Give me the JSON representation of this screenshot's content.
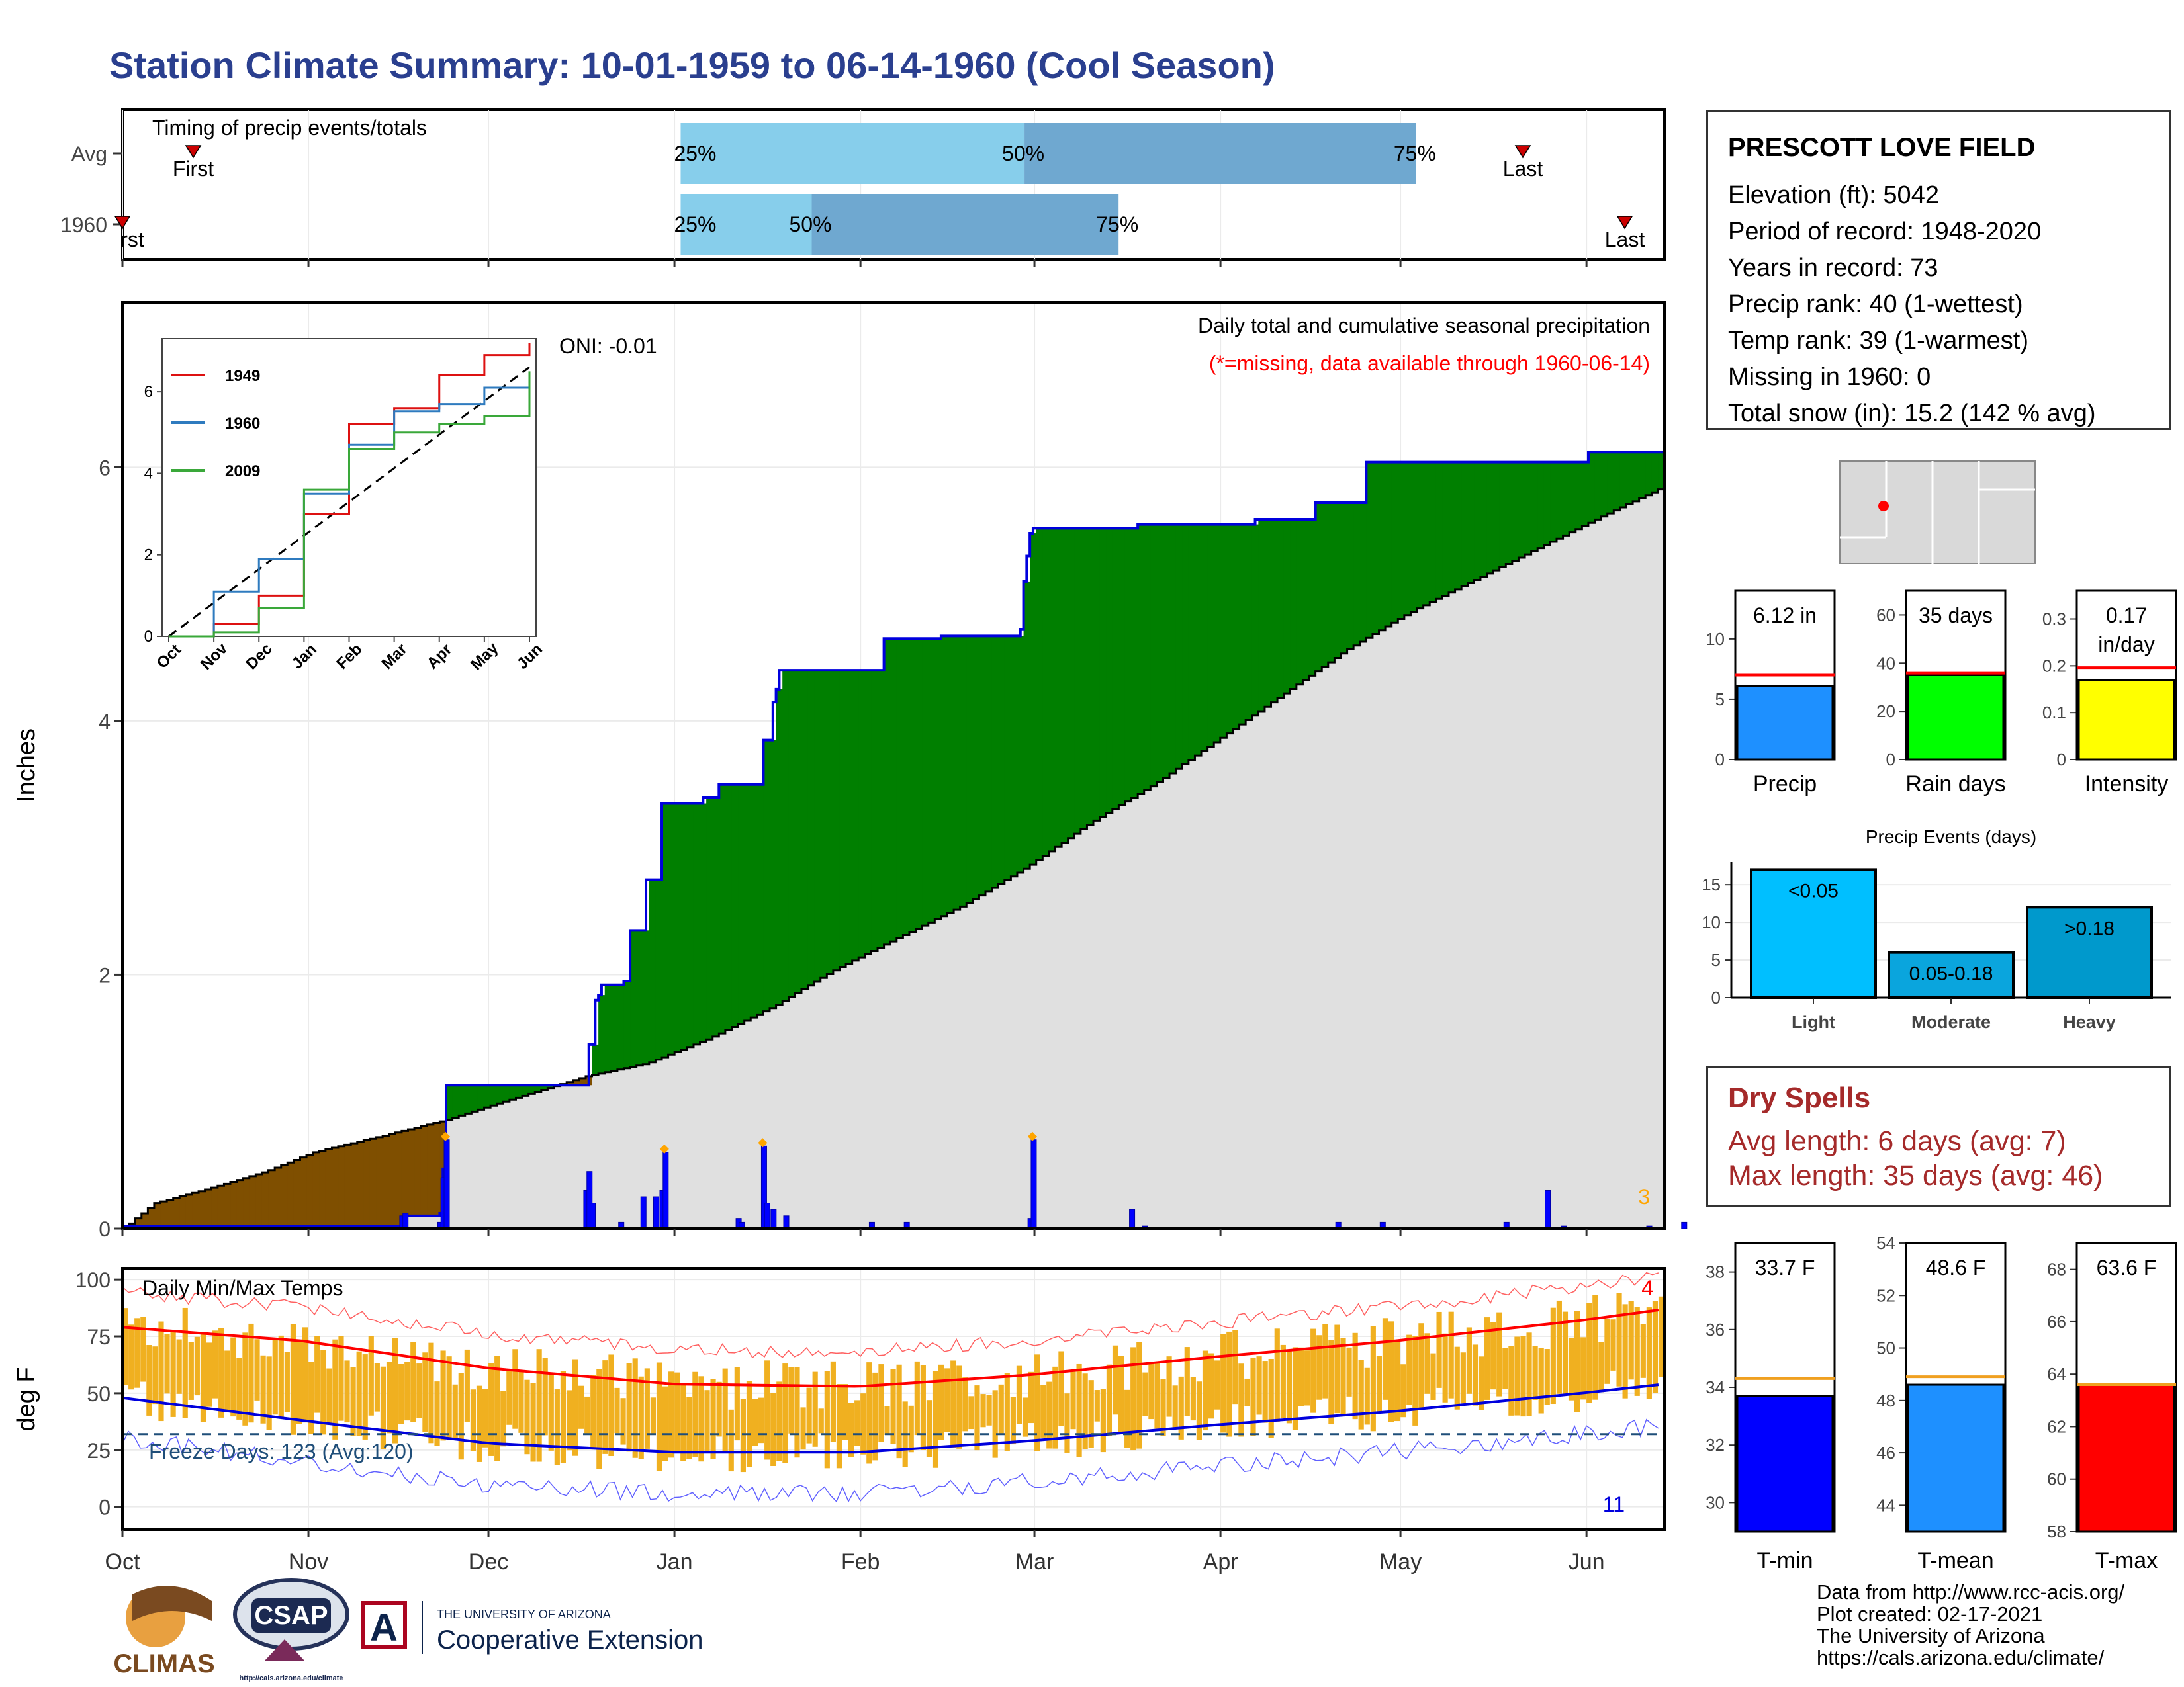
{
  "title": "Station Climate Summary: 10-01-1959 to 06-14-1960 (Cool Season)",
  "timing": {
    "label": "Timing of precip events/totals",
    "rows": [
      {
        "name": "Avg",
        "first_label": "First",
        "last_label": "Last",
        "first": 0.14,
        "p25": 0.362,
        "p50": 0.585,
        "p75": 0.839,
        "last": 1.9
      },
      {
        "name": "1960",
        "first_label": "First",
        "last_label": "Last",
        "first": 0.0,
        "p25": 0.362,
        "p50": 0.447,
        "p75": 0.646,
        "last": 2.082
      }
    ],
    "pct_labels": [
      "25%",
      "50%",
      "75%"
    ],
    "colors": {
      "light": "#87ceeb",
      "dark": "#6fa8d0",
      "marker": "#cc0000"
    }
  },
  "main_chart": {
    "ylabel": "Inches",
    "header": "Daily total and cumulative seasonal precipitation",
    "missing_note": "(*=missing, data available through 1960-06-14)",
    "oni": "ONI: -0.01",
    "count_label": "3",
    "ylim": [
      0,
      7.3
    ],
    "yticks": [
      0,
      2,
      4,
      6
    ],
    "months": [
      "Oct",
      "Nov",
      "Dec",
      "Jan",
      "Feb",
      "Mar",
      "Apr",
      "May",
      "Jun"
    ],
    "colors": {
      "above": "#007f00",
      "below": "#7f4f00",
      "observed": "#0000dd",
      "fill": "#e0e0e0",
      "avg_line": "#000000"
    }
  },
  "chart_data": [
    {
      "type": "area",
      "title": "Daily total and cumulative seasonal precipitation",
      "ylabel": "Inches",
      "x_unit": "day of season (0 = Oct 1)",
      "ylim": [
        0,
        7.3
      ],
      "series": [
        {
          "name": "1960",
          "points": [
            [
              0,
              0.02
            ],
            [
              88,
              0.02
            ],
            [
              89,
              0.1
            ],
            [
              100,
              0.12
            ],
            [
              101,
              0.47
            ],
            [
              102,
              1.13
            ],
            [
              146,
              1.13
            ],
            [
              147,
              1.45
            ],
            [
              149,
              1.8
            ],
            [
              150,
              1.84
            ],
            [
              151,
              1.92
            ],
            [
              158,
              1.95
            ],
            [
              160,
              2.35
            ],
            [
              165,
              2.75
            ],
            [
              170,
              3.35
            ],
            [
              183,
              3.4
            ],
            [
              188,
              3.5
            ],
            [
              201,
              3.5
            ],
            [
              202,
              3.85
            ],
            [
              205,
              4.15
            ],
            [
              206,
              4.25
            ],
            [
              207,
              4.4
            ],
            [
              239,
              4.4
            ],
            [
              240,
              4.65
            ],
            [
              257,
              4.65
            ],
            [
              258,
              4.67
            ],
            [
              283,
              4.72
            ],
            [
              284,
              5.1
            ],
            [
              285,
              5.3
            ],
            [
              286,
              5.48
            ],
            [
              287,
              5.52
            ],
            [
              311,
              5.52
            ],
            [
              320,
              5.55
            ],
            [
              356,
              5.55
            ],
            [
              357,
              5.59
            ],
            [
              375,
              5.59
            ],
            [
              376,
              5.72
            ],
            [
              391,
              5.72
            ],
            [
              392,
              6.04
            ],
            [
              462,
              6.12
            ],
            [
              486,
              6.12
            ]
          ]
        },
        {
          "name": "Avg",
          "points": [
            [
              0,
              0.0
            ],
            [
              10,
              0.2
            ],
            [
              25,
              0.3
            ],
            [
              45,
              0.45
            ],
            [
              60,
              0.6
            ],
            [
              80,
              0.72
            ],
            [
              101,
              0.85
            ],
            [
              120,
              1.0
            ],
            [
              146,
              1.2
            ],
            [
              165,
              1.3
            ],
            [
              185,
              1.5
            ],
            [
              205,
              1.75
            ],
            [
              225,
              2.05
            ],
            [
              245,
              2.3
            ],
            [
              265,
              2.55
            ],
            [
              285,
              2.85
            ],
            [
              305,
              3.2
            ],
            [
              325,
              3.5
            ],
            [
              345,
              3.85
            ],
            [
              365,
              4.2
            ],
            [
              385,
              4.55
            ],
            [
              405,
              4.85
            ],
            [
              425,
              5.1
            ],
            [
              445,
              5.35
            ],
            [
              465,
              5.6
            ],
            [
              486,
              5.85
            ]
          ]
        }
      ],
      "daily_bars": [
        [
          88,
          0.1
        ],
        [
          89,
          0.12
        ],
        [
          100,
          0.05
        ],
        [
          101,
          0.4
        ],
        [
          102,
          0.7
        ],
        [
          146,
          0.3
        ],
        [
          147,
          0.45
        ],
        [
          148,
          0.2
        ],
        [
          157,
          0.05
        ],
        [
          164,
          0.25
        ],
        [
          168,
          0.25
        ],
        [
          170,
          0.3
        ],
        [
          171,
          0.6
        ],
        [
          194,
          0.08
        ],
        [
          195,
          0.05
        ],
        [
          202,
          0.65
        ],
        [
          203,
          0.2
        ],
        [
          205,
          0.15
        ],
        [
          209,
          0.1
        ],
        [
          236,
          0.05
        ],
        [
          247,
          0.05
        ],
        [
          286,
          0.08
        ],
        [
          287,
          0.7
        ],
        [
          318,
          0.15
        ],
        [
          322,
          0.02
        ],
        [
          383,
          0.05
        ],
        [
          397,
          0.05
        ],
        [
          436,
          0.05
        ],
        [
          449,
          0.3
        ],
        [
          454,
          0.02
        ],
        [
          481,
          0.02
        ],
        [
          492,
          0.05
        ]
      ]
    },
    {
      "type": "line",
      "title": "",
      "x": [
        "Oct",
        "Nov",
        "Dec",
        "Jan",
        "Feb",
        "Mar",
        "Apr",
        "May",
        "Jun"
      ],
      "series": [
        {
          "name": "1949",
          "values": [
            0,
            0.3,
            1.0,
            3.0,
            5.2,
            5.6,
            6.4,
            6.9,
            7.2
          ]
        },
        {
          "name": "1960",
          "values": [
            0,
            1.1,
            1.9,
            3.5,
            4.7,
            5.52,
            5.7,
            6.1,
            6.12
          ]
        },
        {
          "name": "2009",
          "values": [
            0,
            0.1,
            0.7,
            3.6,
            4.6,
            5.0,
            5.2,
            5.4,
            6.5
          ]
        }
      ],
      "avg_label": "",
      "yticks": [
        0,
        2,
        4,
        6
      ]
    },
    {
      "type": "bar",
      "title": "",
      "categories": [
        "Precip",
        "Rain days",
        "Intensity"
      ],
      "values": [
        6.12,
        35,
        0.17
      ],
      "avg": [
        7.0,
        35.8,
        0.196
      ],
      "value_labels": [
        "6.12 in",
        "35 days",
        "0.17 in/day"
      ],
      "ylims": [
        [
          0,
          14
        ],
        [
          0,
          70
        ],
        [
          0,
          0.36
        ]
      ],
      "ytick_sets": [
        [
          0,
          5,
          10
        ],
        [
          0,
          20,
          40,
          60
        ],
        [
          0.0,
          0.1,
          0.2,
          0.3
        ]
      ],
      "colors": [
        "#1e90ff",
        "#00ff00",
        "#ffff00"
      ]
    },
    {
      "type": "bar",
      "title": "Precip Events (days)",
      "categories": [
        "Light",
        "Moderate",
        "Heavy"
      ],
      "values": [
        17,
        6,
        12
      ],
      "value_labels": [
        "<0.05",
        "0.05-0.18",
        ">0.18"
      ],
      "yticks": [
        0,
        5,
        10,
        15
      ],
      "ylim": [
        0,
        18
      ],
      "colors": [
        "#00bfff",
        "#0aa5dd",
        "#0099cc"
      ]
    },
    {
      "type": "bar",
      "title": "Daily Min/Max Temps",
      "ylabel": "deg F",
      "ylim": [
        -10,
        105
      ],
      "yticks": [
        0,
        25,
        50,
        75,
        100
      ],
      "freeze_label": "Freeze Days: 123 (Avg:120)",
      "freeze_line": 32,
      "record_high_count": "4",
      "record_low_count": "11",
      "avg_max": [
        [
          0,
          79
        ],
        [
          30,
          73
        ],
        [
          61,
          61
        ],
        [
          92,
          54
        ],
        [
          123,
          53
        ],
        [
          151,
          58
        ],
        [
          182,
          66
        ],
        [
          212,
          73
        ],
        [
          243,
          82
        ],
        [
          257,
          87
        ]
      ],
      "avg_min": [
        [
          0,
          48
        ],
        [
          30,
          38
        ],
        [
          61,
          28
        ],
        [
          92,
          24
        ],
        [
          123,
          24
        ],
        [
          151,
          29
        ],
        [
          182,
          36
        ],
        [
          212,
          42
        ],
        [
          243,
          50
        ],
        [
          257,
          54
        ]
      ]
    },
    {
      "type": "bar",
      "title": "",
      "categories": [
        "T-min",
        "T-mean",
        "T-max"
      ],
      "values": [
        33.7,
        48.6,
        63.6
      ],
      "avg": [
        34.3,
        48.9,
        63.6
      ],
      "value_labels": [
        "33.7 F",
        "48.6 F",
        "63.6 F"
      ],
      "ylims": [
        [
          29,
          39
        ],
        [
          43,
          54
        ],
        [
          58,
          69
        ]
      ],
      "ytick_sets": [
        [
          30,
          32,
          34,
          36,
          38
        ],
        [
          44,
          46,
          48,
          50,
          52,
          54
        ],
        [
          58,
          60,
          62,
          64,
          66,
          68
        ]
      ],
      "colors": [
        "#0000ff",
        "#1e90ff",
        "#ff0000"
      ]
    }
  ],
  "station": {
    "name": "PRESCOTT LOVE FIELD",
    "lines": [
      "Elevation (ft): 5042",
      "Period of record: 1948-2020",
      "Years in record: 73",
      "Precip rank: 40 (1-wettest)",
      "Temp rank: 39 (1-warmest)",
      "Missing in 1960: 0",
      "Total snow (in): 15.2 (142 % avg)"
    ]
  },
  "dry_spells": {
    "title": "Dry Spells",
    "avg": "Avg length: 6 days (avg: 7)",
    "max": "Max length: 35 days (avg: 46)"
  },
  "credits": {
    "source": "Data from http://www.rcc-acis.org/",
    "created": "Plot created: 02-17-2021",
    "org": "The University of Arizona",
    "url": "https://cals.arizona.edu/climate/"
  },
  "logos": {
    "climas": "CLIMAS",
    "csap": "CSAP",
    "csap_url": "http://cals.arizona.edu/climate",
    "ua_small": "THE UNIVERSITY OF ARIZONA",
    "ua_big": "Cooperative Extension",
    "ua_letter": "A"
  }
}
